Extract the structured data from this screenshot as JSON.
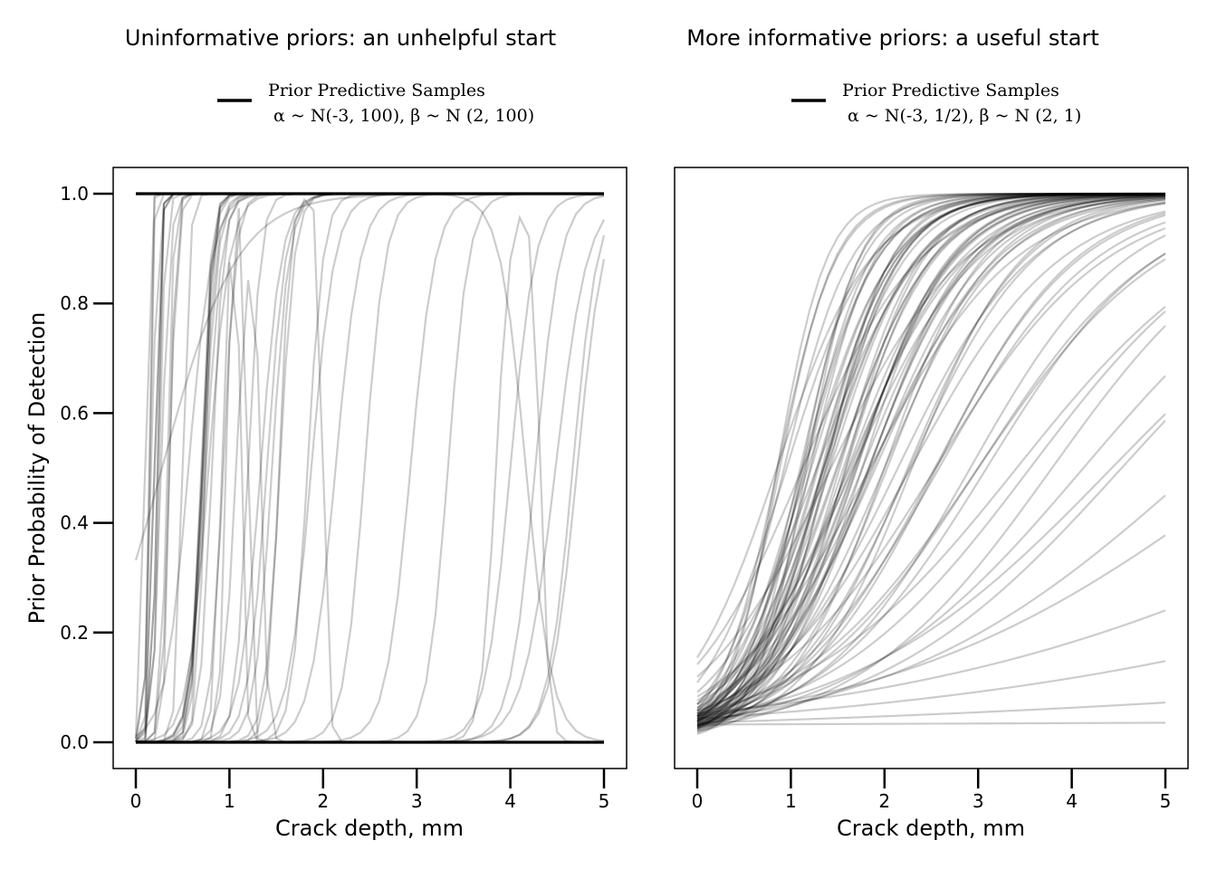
{
  "chart_data": [
    {
      "type": "line",
      "title": "Uninformative priors: an unhelpful start",
      "xlabel": "Crack depth, mm",
      "ylabel": "Prior Probability of Detection",
      "xlim": [
        0,
        5
      ],
      "ylim": [
        0,
        1
      ],
      "xticks": [
        "0",
        "1",
        "2",
        "3",
        "4",
        "5"
      ],
      "yticks": [
        "0.0",
        "0.2",
        "0.4",
        "0.6",
        "0.8",
        "1.0"
      ],
      "grid": false,
      "legend": {
        "placement": "top-center",
        "entries": [
          {
            "line1": "Prior Predictive Samples",
            "line2": "α ~ N(-3, 100), β ~ N (2, 100)"
          }
        ]
      },
      "line_color": "#000000",
      "line_opacity": 0.2,
      "prior": {
        "alpha_mean": -3,
        "alpha_var": 100,
        "beta_mean": 2,
        "beta_var": 100
      },
      "curves": [
        {
          "alpha": 50,
          "beta": -7.6
        },
        {
          "alpha": -8,
          "beta": 40
        },
        {
          "alpha": 40,
          "beta": -6.9
        },
        {
          "alpha": -0.7,
          "beta": 2.5
        },
        {
          "alpha": -10,
          "beta": 80
        },
        {
          "alpha": -9,
          "beta": 60
        },
        {
          "alpha": -5,
          "beta": 30
        },
        {
          "alpha": -8,
          "beta": 32
        },
        {
          "alpha": -10,
          "beta": 30
        },
        {
          "alpha": -12,
          "beta": 33
        },
        {
          "alpha": -14,
          "beta": 20
        },
        {
          "alpha": -10,
          "beta": 14
        },
        {
          "alpha": -15,
          "beta": 21
        },
        {
          "alpha": -10,
          "beta": 13.7
        },
        {
          "alpha": -9,
          "beta": 12
        },
        {
          "alpha": -14,
          "beta": 15
        },
        {
          "alpha": -18,
          "beta": 15
        },
        {
          "alpha": -14,
          "beta": 10
        },
        {
          "alpha": -16,
          "beta": 11
        },
        {
          "alpha": -20,
          "beta": 13
        },
        {
          "alpha": -22,
          "beta": 12
        },
        {
          "alpha": -15,
          "beta": 8
        },
        {
          "alpha": -16,
          "beta": 7.5
        },
        {
          "alpha": -22,
          "beta": 9
        },
        {
          "alpha": -22,
          "beta": 7.5
        },
        {
          "alpha": -30,
          "beta": 9
        },
        {
          "alpha": -30,
          "beta": 7.5
        },
        {
          "alpha": -32,
          "beta": 7.5
        },
        {
          "alpha": -26,
          "beta": 5.8
        },
        {
          "alpha": -33,
          "beta": 7
        },
        {
          "alpha": -35,
          "beta": 7.5
        },
        {
          "alpha": -10,
          "beta": 45
        },
        {
          "alpha": -14,
          "beta": 28
        },
        {
          "alpha": -7,
          "beta": 9
        },
        {
          "alpha": -12,
          "beta": 17
        },
        {
          "alpha": 30,
          "beta": -7.2
        },
        {
          "alpha": -5,
          "beta": 50
        },
        {
          "alpha": -4.5,
          "beta": 8
        },
        {
          "alpha": -13,
          "beta": 16
        },
        {
          "alpha": -7,
          "beta": 35
        },
        {
          "alpha": -11,
          "beta": 50
        },
        {
          "alpha": -17,
          "beta": 23
        },
        {
          "alpha": -13.5,
          "beta": 19
        },
        {
          "alpha": -12,
          "beta": 9
        },
        {
          "alpha": -6,
          "beta": 22
        },
        {
          "alpha": -9,
          "beta": 25
        }
      ],
      "bump_curves": [
        {
          "alpha": 60,
          "beta": -50,
          "a2": -28,
          "b2": 29
        },
        {
          "alpha": 45,
          "beta": -40,
          "a2": -22,
          "b2": 24
        },
        {
          "alpha": 40,
          "beta": -30,
          "a2": -15,
          "b2": 14
        },
        {
          "alpha": 70,
          "beta": -35,
          "a2": -26,
          "b2": 17
        },
        {
          "alpha": 95,
          "beta": -22,
          "a2": -50,
          "b2": 13
        }
      ]
    },
    {
      "type": "line",
      "title": "More informative priors: a useful start",
      "xlabel": "Crack depth, mm",
      "ylabel": "",
      "xlim": [
        0,
        5
      ],
      "ylim": [
        0,
        1
      ],
      "xticks": [
        "0",
        "1",
        "2",
        "3",
        "4",
        "5"
      ],
      "yticks": [],
      "grid": false,
      "legend": {
        "placement": "top-center",
        "entries": [
          {
            "line1": "Prior Predictive Samples",
            "line2": "α ~ N(-3, 1/2), β ~ N (2, 1)"
          }
        ]
      },
      "line_color": "#000000",
      "line_opacity": 0.2,
      "prior": {
        "alpha_mean": -3,
        "alpha_var": 0.5,
        "beta_mean": 2,
        "beta_var": 1
      },
      "curves": [
        {
          "alpha": -3.2,
          "beta": 1.9
        },
        {
          "alpha": -3.5,
          "beta": 2.2
        },
        {
          "alpha": -2.8,
          "beta": 1.7
        },
        {
          "alpha": -3.0,
          "beta": 2.0
        },
        {
          "alpha": -2.6,
          "beta": 1.6
        },
        {
          "alpha": -3.4,
          "beta": 2.5
        },
        {
          "alpha": -3.1,
          "beta": 2.3
        },
        {
          "alpha": -2.9,
          "beta": 1.8
        },
        {
          "alpha": -3.6,
          "beta": 2.7
        },
        {
          "alpha": -3.3,
          "beta": 3.0
        },
        {
          "alpha": -2.7,
          "beta": 2.0
        },
        {
          "alpha": -3.0,
          "beta": 2.6
        },
        {
          "alpha": -2.5,
          "beta": 1.5
        },
        {
          "alpha": -3.2,
          "beta": 1.6
        },
        {
          "alpha": -3.5,
          "beta": 1.9
        },
        {
          "alpha": -2.4,
          "beta": 1.3
        },
        {
          "alpha": -3.0,
          "beta": 1.4
        },
        {
          "alpha": -3.4,
          "beta": 1.5
        },
        {
          "alpha": -3.8,
          "beta": 2.4
        },
        {
          "alpha": -3.0,
          "beta": 3.4
        },
        {
          "alpha": -2.6,
          "beta": 2.8
        },
        {
          "alpha": -3.1,
          "beta": 1.2
        },
        {
          "alpha": -2.8,
          "beta": 1.1
        },
        {
          "alpha": -3.3,
          "beta": 1.3
        },
        {
          "alpha": -3.6,
          "beta": 1.6
        },
        {
          "alpha": -2.9,
          "beta": 2.1
        },
        {
          "alpha": -3.2,
          "beta": 2.8
        },
        {
          "alpha": -3.7,
          "beta": 3.3
        },
        {
          "alpha": -2.3,
          "beta": 1.8
        },
        {
          "alpha": -3.4,
          "beta": 1.1
        },
        {
          "alpha": -3.0,
          "beta": 1.0
        },
        {
          "alpha": -3.5,
          "beta": 1.2
        },
        {
          "alpha": -3.2,
          "beta": 0.9
        },
        {
          "alpha": -2.9,
          "beta": 0.85
        },
        {
          "alpha": -3.3,
          "beta": 0.8
        },
        {
          "alpha": -3.6,
          "beta": 0.95
        },
        {
          "alpha": -3.1,
          "beta": 0.7
        },
        {
          "alpha": -3.4,
          "beta": 0.75
        },
        {
          "alpha": -3.2,
          "beta": 0.6
        },
        {
          "alpha": -3.0,
          "beta": 0.5
        },
        {
          "alpha": -2.9,
          "beta": 0.35
        },
        {
          "alpha": -3.1,
          "beta": 0.27
        },
        {
          "alpha": -3.3,
          "beta": 0.15
        },
        {
          "alpha": -3.4,
          "beta": 0.02
        },
        {
          "alpha": -2.1,
          "beta": 2.2
        },
        {
          "alpha": -1.8,
          "beta": 1.6
        },
        {
          "alpha": -1.7,
          "beta": 2.0
        },
        {
          "alpha": -2.0,
          "beta": 1.4
        },
        {
          "alpha": -4.0,
          "beta": 2.9
        },
        {
          "alpha": -4.2,
          "beta": 3.6
        },
        {
          "alpha": -3.9,
          "beta": 1.7
        },
        {
          "alpha": -3.7,
          "beta": 2.1
        },
        {
          "alpha": -3.5,
          "beta": 2.3
        },
        {
          "alpha": -3.1,
          "beta": 2.4
        },
        {
          "alpha": -2.8,
          "beta": 2.5
        },
        {
          "alpha": -3.3,
          "beta": 1.8
        },
        {
          "alpha": -3.0,
          "beta": 1.7
        },
        {
          "alpha": -2.7,
          "beta": 1.45
        },
        {
          "alpha": -3.2,
          "beta": 2.05
        },
        {
          "alpha": -3.5,
          "beta": 2.9
        },
        {
          "alpha": -2.6,
          "beta": 2.2
        },
        {
          "alpha": -3.8,
          "beta": 1.9
        },
        {
          "alpha": -2.95,
          "beta": 1.55
        },
        {
          "alpha": -3.05,
          "beta": 2.15
        },
        {
          "alpha": -3.45,
          "beta": 1.35
        },
        {
          "alpha": -3.15,
          "beta": 1.05
        },
        {
          "alpha": -2.85,
          "beta": 1.25
        },
        {
          "alpha": -3.55,
          "beta": 1.75
        },
        {
          "alpha": -3.25,
          "beta": 3.8
        },
        {
          "alpha": -2.75,
          "beta": 3.2
        },
        {
          "alpha": -3.65,
          "beta": 2.6
        },
        {
          "alpha": -3.1,
          "beta": 1.85
        },
        {
          "alpha": -3.4,
          "beta": 2.0
        },
        {
          "alpha": -3.0,
          "beta": 2.35
        },
        {
          "alpha": -2.9,
          "beta": 1.95
        },
        {
          "alpha": -3.3,
          "beta": 2.45
        },
        {
          "alpha": -3.2,
          "beta": 1.75
        },
        {
          "alpha": -2.8,
          "beta": 2.3
        },
        {
          "alpha": -3.5,
          "beta": 2.05
        },
        {
          "alpha": -3.1,
          "beta": 1.65
        }
      ]
    }
  ]
}
